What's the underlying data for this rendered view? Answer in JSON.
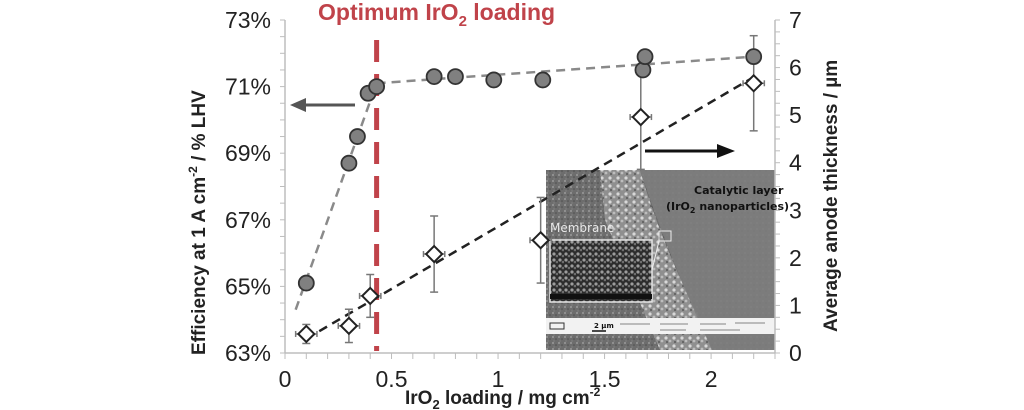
{
  "chart_data": {
    "type": "scatter",
    "title": "",
    "annotation": {
      "text_main": "Optimum IrO",
      "text_sub": "2",
      "text_tail": " loading",
      "x": 0.43,
      "color": "#c0434a"
    },
    "xlabel": {
      "main": "IrO",
      "sub": "2",
      "tail": " loading / mg cm",
      "sup": "-2"
    },
    "ylabel_left": {
      "main": "Efficiency at 1 A cm",
      "sup": "-2",
      "tail": " / % LHV"
    },
    "ylabel_right": "Average anode thickness / µm",
    "xlim": [
      0,
      2.3
    ],
    "ylim_left": [
      63,
      73
    ],
    "ylim_right": [
      0,
      7
    ],
    "x_ticks": [
      "0",
      "0.5",
      "1",
      "1.5",
      "2"
    ],
    "y_left_ticks": [
      "63%",
      "65%",
      "67%",
      "69%",
      "71%",
      "73%"
    ],
    "y_right_ticks": [
      "0",
      "1",
      "2",
      "3",
      "4",
      "5",
      "6",
      "7"
    ],
    "series": [
      {
        "name": "Efficiency at 1 A cm-2 (% LHV)",
        "axis": "left",
        "marker": "circle",
        "color": "#808080",
        "x": [
          0.1,
          0.3,
          0.34,
          0.39,
          0.43,
          0.7,
          0.8,
          0.98,
          1.21,
          1.68,
          1.69,
          2.2
        ],
        "y": [
          65.1,
          68.7,
          69.5,
          70.8,
          71.0,
          71.3,
          71.3,
          71.2,
          71.2,
          71.5,
          71.9,
          71.9
        ]
      },
      {
        "name": "Average anode thickness (µm)",
        "axis": "right",
        "marker": "diamond",
        "color": "#ffffff",
        "x": [
          0.1,
          0.3,
          0.4,
          0.7,
          1.2,
          1.67,
          2.2
        ],
        "y": [
          0.4,
          0.57,
          1.2,
          2.08,
          2.37,
          4.96,
          5.67
        ],
        "y_err": [
          0.2,
          0.35,
          0.45,
          0.8,
          0.9,
          1.1,
          1.0
        ],
        "x_err": [
          0.05,
          0.05,
          0.05,
          0.05,
          0.05,
          0.05,
          0.05
        ]
      }
    ],
    "trendlines": [
      {
        "series": "efficiency",
        "style": "dashed",
        "color": "#8a8a8a",
        "segments": [
          [
            [
              0.05,
              64.3
            ],
            [
              0.43,
              71.1
            ]
          ],
          [
            [
              0.43,
              71.1
            ],
            [
              2.2,
              71.9
            ]
          ]
        ]
      },
      {
        "series": "thickness",
        "style": "dashed",
        "color": "#222222",
        "segments": [
          [
            [
              0.1,
              0.3
            ],
            [
              2.2,
              5.8
            ]
          ]
        ]
      }
    ],
    "arrows": [
      {
        "direction": "left",
        "axis": "left",
        "color": "#555555"
      },
      {
        "direction": "right",
        "axis": "right",
        "color": "#111111"
      }
    ],
    "grid": false,
    "legend": "none"
  },
  "inset": {
    "label_catalytic_1": "Catalytic layer",
    "label_catalytic_2a": "(IrO",
    "label_catalytic_2sub": "2",
    "label_catalytic_2b": " nanoparticles)",
    "label_membrane": "Membrane",
    "scalebar": "2 µm"
  }
}
